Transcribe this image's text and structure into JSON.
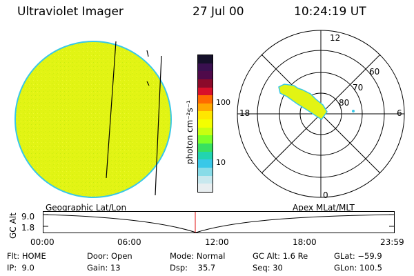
{
  "header": {
    "instrument": "Ultraviolet Imager",
    "date": "27 Jul 00",
    "time": "10:24:19 UT"
  },
  "colorbar": {
    "unit_label": "photon cm⁻²s⁻¹",
    "ticks": [
      "100",
      "10"
    ],
    "colors": [
      "#15102a",
      "#3a1050",
      "#4f0a4a",
      "#8b0a2a",
      "#d8102a",
      "#ff6a00",
      "#ffa800",
      "#ffe600",
      "#f4ff00",
      "#c8ff10",
      "#7cff28",
      "#38e060",
      "#22d4b0",
      "#38c8e8",
      "#88dce8",
      "#c8e8ee",
      "#e8eef0"
    ]
  },
  "geo_map": {
    "label": "Geographic Lat/Lon",
    "disk_color": "#e2f414",
    "edge_color": "#38c8e8"
  },
  "polar_plot": {
    "label": "Apex MLat/MLT",
    "mlt_labels": [
      "12",
      "18",
      "6",
      "0"
    ],
    "lat_labels": [
      "60",
      "70",
      "80"
    ],
    "blob_color": "#e2f414",
    "edge_color": "#38c8e8"
  },
  "altitude_plot": {
    "axis_label": "GC Alt",
    "y_ticks": [
      "9.0",
      "1.8"
    ],
    "x_ticks": [
      "00:00",
      "06:00",
      "12:00",
      "18:00",
      "23:59"
    ],
    "marker_color": "#e01010",
    "marker_time_fraction": 0.434
  },
  "status": {
    "flt": "Flt: HOME",
    "ip": "IP:  9.0",
    "door": "Door: Open",
    "gain": "Gain: 13",
    "mode": "Mode: Normal",
    "dsp": "Dsp:    35.7",
    "gc_alt": "GC Alt: 1.6 Re",
    "seq": "Seq: 30",
    "glat": "GLat: −59.9",
    "glon": "GLon: 100.5"
  }
}
